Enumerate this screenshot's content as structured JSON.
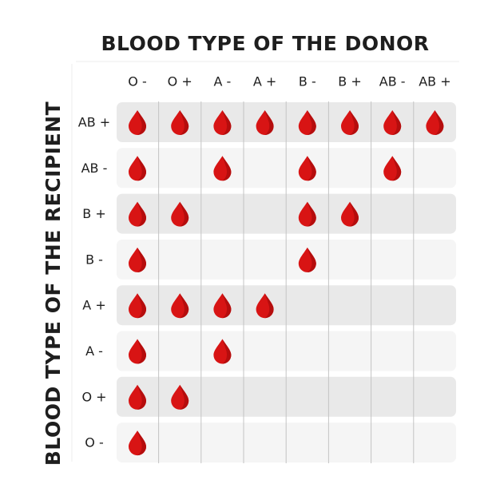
{
  "header": {
    "title": "BLOOD TYPE OF THE DONOR",
    "side_title": "BLOOD TYPE OF THE RECIPIENT"
  },
  "table": {
    "columns": [
      "O -",
      "O +",
      "A -",
      "A +",
      "B -",
      "B +",
      "AB -",
      "AB +"
    ],
    "row_labels": [
      "AB +",
      "AB -",
      "B +",
      "B -",
      "A +",
      "A -",
      "O +",
      "O -"
    ],
    "rows": [
      [
        true,
        true,
        true,
        true,
        true,
        true,
        true,
        true
      ],
      [
        true,
        false,
        true,
        false,
        true,
        false,
        true,
        false
      ],
      [
        true,
        true,
        false,
        false,
        true,
        true,
        false,
        false
      ],
      [
        true,
        false,
        false,
        false,
        true,
        false,
        false,
        false
      ],
      [
        true,
        true,
        true,
        true,
        false,
        false,
        false,
        false
      ],
      [
        true,
        false,
        true,
        false,
        false,
        false,
        false,
        false
      ],
      [
        true,
        true,
        false,
        false,
        false,
        false,
        false,
        false
      ],
      [
        true,
        false,
        false,
        false,
        false,
        false,
        false,
        false
      ]
    ]
  }
}
